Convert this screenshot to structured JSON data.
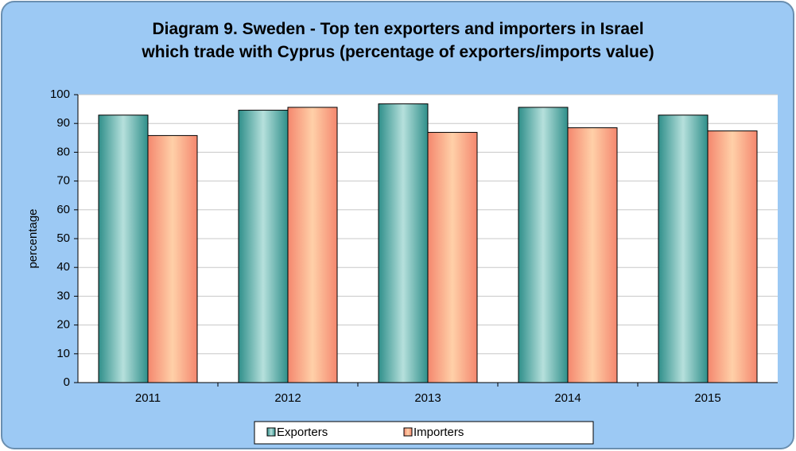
{
  "chart_data": {
    "type": "bar",
    "title": "Diagram 9. Sweden - Top ten exporters and importers in Israel which trade with Cyprus  (percentage  of exporters/imports value)",
    "y_label": "percentage",
    "categories": [
      "2011",
      "2012",
      "2013",
      "2014",
      "2015"
    ],
    "series": [
      {
        "name": "Exporters",
        "color": "#2f8f8a",
        "values": [
          92.9,
          94.6,
          96.8,
          95.6,
          92.9
        ]
      },
      {
        "name": "Importers",
        "color": "#f4876e",
        "values": [
          85.8,
          95.6,
          86.9,
          88.5,
          87.4
        ]
      }
    ],
    "ylim": [
      0,
      100
    ],
    "yticks": [
      0,
      10,
      20,
      30,
      40,
      50,
      60,
      70,
      80,
      90,
      100
    ],
    "grid": true,
    "legend": "bottom"
  }
}
